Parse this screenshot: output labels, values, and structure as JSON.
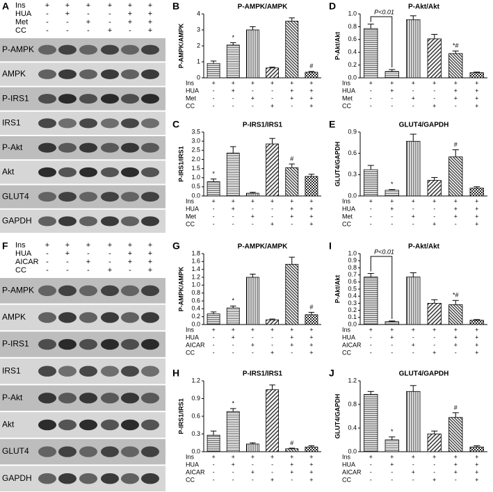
{
  "blots": [
    {
      "letter": "A",
      "rows": [
        "P-AMPK",
        "AMPK",
        "P-IRS1",
        "IRS1",
        "P-Akt",
        "Akt",
        "GLUT4",
        "GAPDH"
      ],
      "treatments": [
        {
          "name": "Ins",
          "signs": [
            "+",
            "+",
            "+",
            "+",
            "+",
            "+"
          ]
        },
        {
          "name": "HUA",
          "signs": [
            "-",
            "+",
            "-",
            "-",
            "+",
            "+"
          ]
        },
        {
          "name": "Met",
          "signs": [
            "-",
            "-",
            "+",
            "-",
            "+",
            "+"
          ]
        },
        {
          "name": "CC",
          "signs": [
            "-",
            "-",
            "-",
            "+",
            "-",
            "+"
          ]
        }
      ]
    },
    {
      "letter": "F",
      "rows": [
        "P-AMPK",
        "AMPK",
        "P-IRS1",
        "IRS1",
        "P-Akt",
        "Akt",
        "GLUT4",
        "GAPDH"
      ],
      "treatments": [
        {
          "name": "Ins",
          "signs": [
            "+",
            "+",
            "+",
            "+",
            "+",
            "+"
          ]
        },
        {
          "name": "HUA",
          "signs": [
            "-",
            "+",
            "-",
            "-",
            "+",
            "+"
          ]
        },
        {
          "name": "AICAR",
          "signs": [
            "-",
            "-",
            "+",
            "-",
            "+",
            "+"
          ]
        },
        {
          "name": "CC",
          "signs": [
            "-",
            "-",
            "-",
            "+",
            "-",
            "+"
          ]
        }
      ]
    }
  ],
  "chart_data": [
    {
      "type": "bar",
      "letter": "B",
      "title": "P-AMPK/AMPK",
      "y_label": "P-AMPK/AMPK",
      "values": [
        0.9,
        2.05,
        3.0,
        0.62,
        3.55,
        0.35
      ],
      "errors": [
        0.15,
        0.15,
        0.2,
        0.05,
        0.2,
        0.05
      ],
      "markers": [
        null,
        "*",
        null,
        null,
        null,
        "#"
      ],
      "ylim": [
        0,
        4
      ],
      "yticks": [
        0,
        1,
        2,
        3,
        4
      ]
    },
    {
      "type": "bar",
      "letter": "C",
      "title": "P-IRS1/IRS1",
      "y_label": "P-IRS1/IRS1",
      "values": [
        0.78,
        2.35,
        0.15,
        2.85,
        1.55,
        1.07
      ],
      "errors": [
        0.15,
        0.35,
        0.05,
        0.3,
        0.2,
        0.12
      ],
      "markers": [
        "*",
        null,
        null,
        null,
        "#",
        null
      ],
      "ylim": [
        0,
        3.5
      ],
      "yticks": [
        {
          "value": 0,
          "label": "0.0"
        },
        0.5,
        {
          "value": 1,
          "label": "1.0"
        },
        1.5,
        {
          "value": 2,
          "label": "2.0"
        },
        2.5,
        {
          "value": 3,
          "label": "3.0"
        },
        3.5
      ]
    },
    {
      "type": "bar",
      "letter": "D",
      "title": "P-Akt/Akt",
      "y_label": "P-Akt/Akt",
      "values": [
        0.77,
        0.1,
        0.91,
        0.61,
        0.38,
        0.08
      ],
      "errors": [
        0.07,
        0.03,
        0.06,
        0.07,
        0.04,
        0.01
      ],
      "markers": [
        null,
        null,
        null,
        null,
        "*#",
        null
      ],
      "bracket": "P<0.01",
      "ylim": [
        0,
        1
      ],
      "yticks": [
        {
          "value": 0,
          "label": "0.0"
        },
        0.2,
        0.4,
        0.6,
        0.8,
        {
          "value": 1,
          "label": "1.0"
        }
      ]
    },
    {
      "type": "bar",
      "letter": "E",
      "title": "GLUT4/GAPDH",
      "y_label": "GLUT4/GAPDH",
      "values": [
        0.37,
        0.08,
        0.77,
        0.22,
        0.55,
        0.11
      ],
      "errors": [
        0.06,
        0.01,
        0.1,
        0.04,
        0.1,
        0.02
      ],
      "markers": [
        null,
        "*",
        null,
        null,
        "#",
        null
      ],
      "ylim": [
        0,
        0.9
      ],
      "yticks": [
        {
          "value": 0,
          "label": "0.0"
        },
        0.3,
        0.6,
        0.9
      ]
    },
    {
      "type": "bar",
      "letter": "G",
      "title": "P-AMPK/AMPK",
      "y_label": "P-AMPK/AMPK",
      "values": [
        0.27,
        0.42,
        1.2,
        0.12,
        1.53,
        0.25
      ],
      "errors": [
        0.05,
        0.05,
        0.08,
        0.02,
        0.18,
        0.06
      ],
      "markers": [
        null,
        "*",
        null,
        null,
        null,
        "#"
      ],
      "ylim": [
        0,
        1.8
      ],
      "yticks": [
        {
          "value": 0,
          "label": "0.0"
        },
        0.2,
        0.4,
        0.6,
        0.8,
        {
          "value": 1,
          "label": "1.0"
        },
        1.2,
        1.4,
        1.6,
        1.8
      ]
    },
    {
      "type": "bar",
      "letter": "H",
      "title": "P-IRS1/IRS1",
      "y_label": "P-IRS1/IRS1",
      "values": [
        0.28,
        0.68,
        0.13,
        1.05,
        0.05,
        0.08
      ],
      "errors": [
        0.07,
        0.05,
        0.02,
        0.08,
        0.01,
        0.02
      ],
      "markers": [
        null,
        "*",
        null,
        null,
        "#",
        null
      ],
      "ylim": [
        0,
        1.2
      ],
      "yticks": [
        {
          "value": 0,
          "label": "0.0"
        },
        0.3,
        0.6,
        0.9,
        1.2
      ]
    },
    {
      "type": "bar",
      "letter": "I",
      "title": "P-Akt/Akt",
      "y_label": "P-Akt/Akt",
      "values": [
        0.67,
        0.04,
        0.67,
        0.3,
        0.28,
        0.06
      ],
      "errors": [
        0.05,
        0.01,
        0.06,
        0.05,
        0.06,
        0.01
      ],
      "markers": [
        null,
        null,
        null,
        null,
        "*#",
        null
      ],
      "bracket": "P<0.01",
      "ylim": [
        0,
        1
      ],
      "yticks": [
        {
          "value": 0,
          "label": "0.0"
        },
        0.1,
        0.2,
        0.3,
        0.4,
        0.5,
        0.6,
        0.7,
        0.8,
        0.9,
        {
          "value": 1,
          "label": "1.0"
        }
      ]
    },
    {
      "type": "bar",
      "letter": "J",
      "title": "GLUT4/GAPDH",
      "y_label": "GLUT4/GAPDH",
      "values": [
        0.97,
        0.2,
        1.02,
        0.3,
        0.58,
        0.08
      ],
      "errors": [
        0.05,
        0.05,
        0.1,
        0.05,
        0.08,
        0.02
      ],
      "markers": [
        null,
        "*",
        null,
        null,
        "#",
        null
      ],
      "ylim": [
        0,
        1.2
      ],
      "yticks": [
        {
          "value": 0,
          "label": "0.0"
        },
        0.4,
        0.8,
        1.2
      ]
    }
  ]
}
